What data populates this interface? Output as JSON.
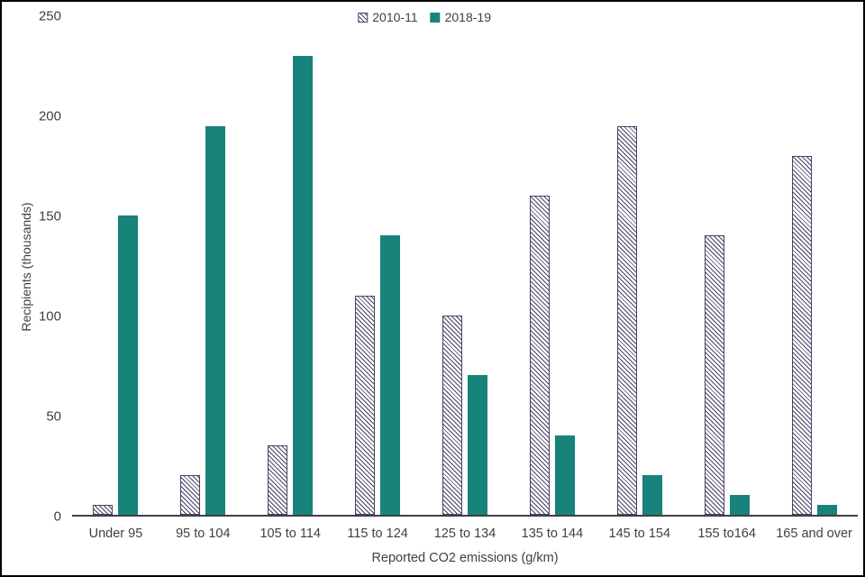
{
  "chart_data": {
    "type": "bar",
    "categories": [
      "Under 95",
      "95 to 104",
      "105 to 114",
      "115 to 124",
      "125 to 134",
      "135 to 144",
      "145 to 154",
      "155 to164",
      "165 and over"
    ],
    "series": [
      {
        "name": "2010-11",
        "style": "hatched",
        "color": "#4a4168",
        "values": [
          5,
          20,
          35,
          110,
          100,
          160,
          195,
          140,
          180
        ]
      },
      {
        "name": "2018-19",
        "style": "solid",
        "color": "#17837b",
        "values": [
          150,
          195,
          230,
          140,
          70,
          40,
          20,
          10,
          5
        ]
      }
    ],
    "title": "",
    "xlabel": "Reported CO2 emissions (g/km)",
    "ylabel": "Recipients (thousands)",
    "ylim": [
      0,
      250
    ],
    "yticks": [
      0,
      50,
      100,
      150,
      200,
      250
    ],
    "legend_position": "top",
    "grid": "off"
  },
  "colors": {
    "axis": "#404040",
    "teal": "#17837b",
    "hatch": "#4a4168",
    "background": "#ffffff"
  }
}
